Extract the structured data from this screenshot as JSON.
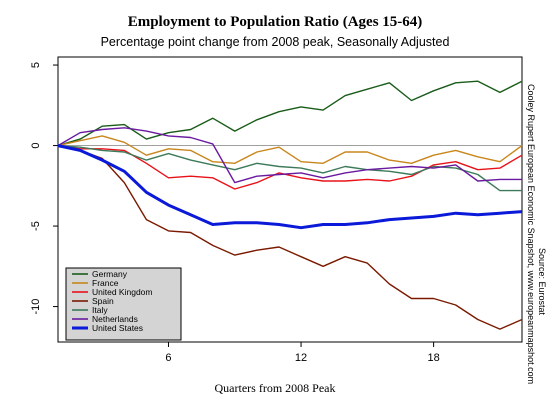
{
  "chart_data": {
    "type": "line",
    "title": "Employment to Population Ratio (Ages 15-64)",
    "subtitle": "Percentage point change from 2008 peak, Seasonally Adjusted",
    "xlabel": "Quarters from 2008 Peak",
    "ylabel": "",
    "xlim": [
      1,
      22
    ],
    "ylim": [
      -12.2,
      5.5
    ],
    "x_ticks": [
      6,
      12,
      18
    ],
    "y_ticks": [
      5,
      0,
      -5,
      -10
    ],
    "x": [
      1,
      2,
      3,
      4,
      5,
      6,
      7,
      8,
      9,
      10,
      11,
      12,
      13,
      14,
      15,
      16,
      17,
      18,
      19,
      20,
      21,
      22
    ],
    "reference_line": 0,
    "legend_position": "bottom-left",
    "series": [
      {
        "name": "Germany",
        "color": "#1a5c1a",
        "values": [
          0,
          0.4,
          1.2,
          1.3,
          0.4,
          0.8,
          1.0,
          1.7,
          0.9,
          1.6,
          2.1,
          2.4,
          2.2,
          3.1,
          3.5,
          3.9,
          2.8,
          3.4,
          3.9,
          4.0,
          3.3,
          4.0
        ]
      },
      {
        "name": "France",
        "color": "#c8861c",
        "values": [
          0,
          0.3,
          0.6,
          0.2,
          -0.6,
          -0.2,
          -0.3,
          -1.0,
          -1.1,
          -0.4,
          -0.1,
          -1.0,
          -1.1,
          -0.4,
          -0.4,
          -0.9,
          -1.1,
          -0.6,
          -0.3,
          -0.7,
          -1.0,
          0
        ]
      },
      {
        "name": "United Kingdom",
        "color": "#e8121a",
        "values": [
          0,
          -0.2,
          -0.2,
          -0.3,
          -1.1,
          -2.0,
          -1.9,
          -2.0,
          -2.7,
          -2.3,
          -1.7,
          -2.0,
          -2.2,
          -2.2,
          -2.1,
          -2.2,
          -1.9,
          -1.2,
          -1.0,
          -1.5,
          -1.4,
          -0.6
        ]
      },
      {
        "name": "Spain",
        "color": "#7a1a00",
        "values": [
          0,
          -0.3,
          -0.8,
          -2.3,
          -4.6,
          -5.3,
          -5.4,
          -6.2,
          -6.8,
          -6.5,
          -6.3,
          -6.9,
          -7.5,
          -6.9,
          -7.3,
          -8.6,
          -9.5,
          -9.5,
          -9.9,
          -10.8,
          -11.4,
          -10.8
        ]
      },
      {
        "name": "Italy",
        "color": "#3c7a5a",
        "values": [
          0,
          -0.1,
          -0.3,
          -0.4,
          -0.9,
          -0.5,
          -0.9,
          -1.2,
          -1.5,
          -1.1,
          -1.3,
          -1.4,
          -1.7,
          -1.3,
          -1.5,
          -1.6,
          -1.8,
          -1.3,
          -1.4,
          -1.8,
          -2.8,
          -2.8
        ]
      },
      {
        "name": "Netherlands",
        "color": "#6a1aa0",
        "values": [
          0,
          0.8,
          1.0,
          1.1,
          0.9,
          0.6,
          0.5,
          0.1,
          -2.3,
          -1.9,
          -1.8,
          -1.7,
          -2.0,
          -1.7,
          -1.5,
          -1.4,
          -1.3,
          -1.4,
          -1.2,
          -2.2,
          -2.1,
          -2.1
        ]
      },
      {
        "name": "United States",
        "color": "#0a1ad8",
        "values": [
          0,
          -0.3,
          -0.9,
          -1.6,
          -2.9,
          -3.7,
          -4.3,
          -4.9,
          -4.8,
          -4.8,
          -4.9,
          -5.1,
          -4.9,
          -4.9,
          -4.8,
          -4.6,
          -4.5,
          -4.4,
          -4.2,
          -4.3,
          -4.2,
          -4.1
        ]
      }
    ]
  },
  "side_notes": {
    "line1": "Cooley Rupert European Economic Snapshot, www.europeanmapshot.com",
    "line2": "Source: Eurostat"
  }
}
